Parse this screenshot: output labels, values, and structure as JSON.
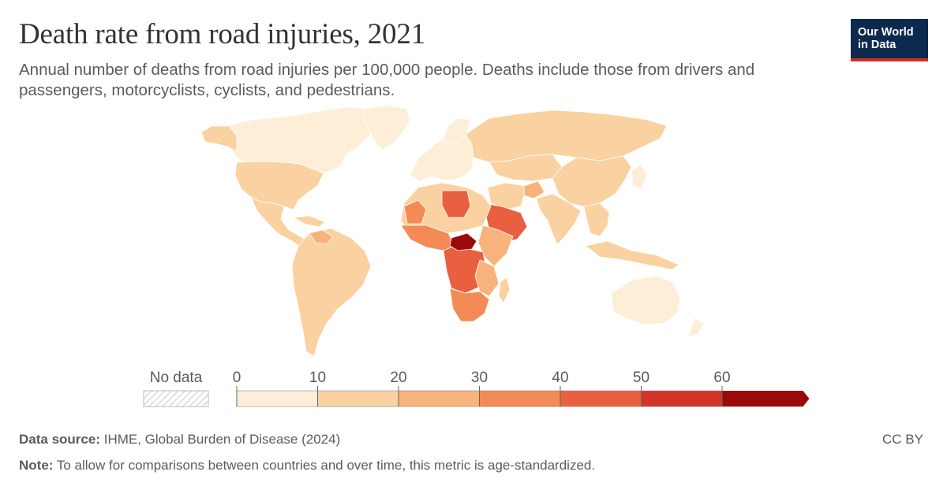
{
  "header": {
    "title": "Death rate from road injuries, 2021",
    "subtitle": "Annual number of deaths from road injuries per 100,000 people. Deaths include those from drivers and passengers, motorcyclists, cyclists, and pedestrians."
  },
  "logo": {
    "line1": "Our World",
    "line2": "in Data",
    "bg_color": "#0c2a4d",
    "accent_color": "#d42b21"
  },
  "legend": {
    "no_data_label": "No data",
    "ticks": [
      "0",
      "10",
      "20",
      "30",
      "40",
      "50",
      "60"
    ],
    "bins": [
      {
        "from": 0,
        "to": 10,
        "color": "#fdeed8"
      },
      {
        "from": 10,
        "to": 20,
        "color": "#fad1a0"
      },
      {
        "from": 20,
        "to": 30,
        "color": "#f8b37c"
      },
      {
        "from": 30,
        "to": 40,
        "color": "#f48a55"
      },
      {
        "from": 40,
        "to": 50,
        "color": "#e8603f"
      },
      {
        "from": 50,
        "to": 60,
        "color": "#d1352a"
      },
      {
        "from": 60,
        "to": null,
        "color": "#9b0a0a"
      }
    ]
  },
  "map_data": {
    "type": "choropleth",
    "regions": [
      {
        "region": "North America",
        "bin": 1
      },
      {
        "region": "Canada",
        "bin": 0
      },
      {
        "region": "Greenland",
        "bin": 0
      },
      {
        "region": "Central America",
        "bin": 1
      },
      {
        "region": "South America",
        "bin": 1
      },
      {
        "region": "Europe",
        "bin": 0
      },
      {
        "region": "Russia",
        "bin": 1
      },
      {
        "region": "Asia",
        "bin": 1
      },
      {
        "region": "North Africa",
        "bin": 2
      },
      {
        "region": "Libya",
        "bin": 4
      },
      {
        "region": "Saudi Arabia",
        "bin": 4
      },
      {
        "region": "Central Africa",
        "bin": 4
      },
      {
        "region": "Central African Republic",
        "bin": 6
      },
      {
        "region": "Southern Africa",
        "bin": 3
      },
      {
        "region": "Australia",
        "bin": 0
      }
    ]
  },
  "footer": {
    "source_label": "Data source:",
    "source_text": "IHME, Global Burden of Disease (2024)",
    "note_label": "Note:",
    "note_text": "To allow for comparisons between countries and over time, this metric is age-standardized.",
    "license": "CC BY"
  }
}
